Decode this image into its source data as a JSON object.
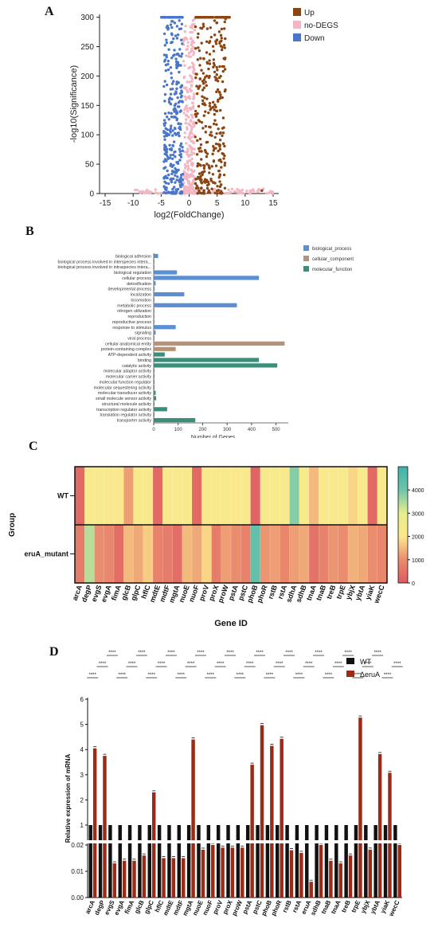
{
  "panel_labels": {
    "a": "A",
    "b": "B",
    "c": "C",
    "d": "D"
  },
  "chart_data": [
    {
      "type": "scatter",
      "panel": "A",
      "xlabel": "log2(FoldChange)",
      "ylabel": "-log10(Significance)",
      "xlim": [
        -16,
        16
      ],
      "ylim": [
        0,
        305
      ],
      "x_ticks": [
        -15,
        -10,
        -5,
        0,
        5,
        10,
        15
      ],
      "y_ticks": [
        0,
        50,
        100,
        150,
        200,
        250,
        300
      ],
      "legend_position": "right",
      "series": [
        {
          "name": "Up",
          "color": "#8b4513"
        },
        {
          "name": "no-DEGS",
          "color": "#f4b6c2"
        },
        {
          "name": "Down",
          "color": "#4a76c9"
        }
      ]
    },
    {
      "type": "bar",
      "orientation": "horizontal",
      "panel": "B",
      "xlabel": "Number of Genes",
      "xlim": [
        0,
        550
      ],
      "x_ticks": [
        0,
        100,
        200,
        300,
        400,
        500
      ],
      "legend_position": "top-right",
      "groups": [
        {
          "name": "biological_process",
          "color": "#5b8fd1"
        },
        {
          "name": "cellular_component",
          "color": "#b89276"
        },
        {
          "name": "molecular_function",
          "color": "#3b8f7a"
        }
      ],
      "categories": [
        "biological adhesion",
        "biological process involved in interspecies intera...",
        "biological process involved in intraspecies intera...",
        "biological regulation",
        "cellular process",
        "detoxification",
        "developmental process",
        "localization",
        "locomotion",
        "metabolic process",
        "nitrogen utilization",
        "reproduction",
        "reproductive process",
        "response to stimulus",
        "signaling",
        "viral process",
        "cellular anatomical entity",
        "protein-containing complex",
        "ATP-dependent activity",
        "binding",
        "catalytic activity",
        "molecular adaptor activity",
        "molecular carrier activity",
        "molecular function regulator",
        "molecular sequestering activity",
        "molecular transducer activity",
        "small molecule sensor activity",
        "structural molecule activity",
        "transcription regulator activity",
        "translation regulator activity",
        "transporter activity"
      ],
      "category_group": [
        0,
        0,
        0,
        0,
        0,
        0,
        0,
        0,
        0,
        0,
        0,
        0,
        0,
        0,
        0,
        0,
        1,
        1,
        2,
        2,
        2,
        2,
        2,
        2,
        2,
        2,
        2,
        2,
        2,
        2,
        2
      ],
      "values": [
        18,
        3,
        3,
        95,
        430,
        8,
        4,
        125,
        2,
        340,
        2,
        2,
        3,
        90,
        8,
        2,
        535,
        90,
        45,
        430,
        505,
        2,
        2,
        2,
        2,
        8,
        10,
        2,
        55,
        2,
        170
      ]
    },
    {
      "type": "heatmap",
      "panel": "C",
      "xlabel": "Gene ID",
      "ylabel": "Group",
      "rows": [
        "WT",
        "eruA_mutant"
      ],
      "columns": [
        "arcA",
        "degP",
        "evgS",
        "evgA",
        "fimA",
        "glcB",
        "glpC",
        "hflC",
        "mdtE",
        "mdtF",
        "mgtA",
        "nuoE",
        "nuoF",
        "proV",
        "proX",
        "proW",
        "pstA",
        "pstC",
        "phoB",
        "phoR",
        "rstB",
        "rstA",
        "sdhA",
        "sdhB",
        "tnaA",
        "tnaB",
        "treB",
        "trpE",
        "ybjX",
        "ybtA",
        "yiaK",
        "wecC"
      ],
      "colorbar_ticks": [
        0,
        1000,
        2000,
        3000,
        4000
      ],
      "values": [
        [
          300,
          2200,
          2300,
          2200,
          2000,
          1200,
          2200,
          2300,
          300,
          2300,
          2200,
          2200,
          300,
          2200,
          2200,
          2200,
          2100,
          2200,
          200,
          2300,
          2300,
          2300,
          3800,
          2300,
          1500,
          2000,
          2200,
          2200,
          1800,
          2200,
          300,
          2100
        ],
        [
          700,
          3400,
          1000,
          900,
          400,
          1500,
          1300,
          1700,
          800,
          700,
          400,
          1500,
          1300,
          1800,
          700,
          1200,
          1000,
          800,
          4200,
          1100,
          1200,
          900,
          1200,
          1300,
          500,
          800,
          1100,
          1000,
          1400,
          1300,
          1000,
          900
        ]
      ]
    },
    {
      "type": "bar",
      "panel": "D",
      "ylabel": "Relative expression of mRNA",
      "y_ticks": [
        "0.00",
        "0.01",
        "0.02",
        "1",
        "2",
        "3",
        "4",
        "5",
        "6"
      ],
      "axis_break": true,
      "annotation": "****",
      "legend_position": "top-right",
      "categories": [
        "arcA",
        "degP",
        "evgS",
        "evgA",
        "fimA",
        "glcB",
        "glpC",
        "hflC",
        "mdtE",
        "mdtF",
        "mgtA",
        "nuoE",
        "nuoF",
        "proV",
        "proX",
        "proW",
        "pstA",
        "pstC",
        "phoB",
        "phoR",
        "rstB",
        "rstA",
        "eruA",
        "sdhB",
        "tnaB",
        "tnaA",
        "treB",
        "trpE",
        "ybjX",
        "ybtA",
        "yiaK",
        "wecC"
      ],
      "series": [
        {
          "name": "WT",
          "color": "#111111",
          "values": [
            1,
            1,
            1,
            1,
            1,
            1,
            1,
            1,
            1,
            1,
            1,
            1,
            1,
            1,
            1,
            1,
            1,
            1,
            1,
            1,
            1,
            1,
            1,
            1,
            1,
            1,
            1,
            1,
            1,
            1,
            1,
            1
          ]
        },
        {
          "name": "ΔeruA",
          "color": "#9b2a16",
          "values": [
            4.05,
            3.75,
            0.013,
            0.014,
            0.014,
            0.016,
            2.3,
            0.015,
            0.015,
            0.015,
            4.4,
            0.021,
            0.02,
            0.019,
            0.019,
            0.019,
            3.4,
            4.97,
            4.15,
            4.43,
            0.018,
            0.017,
            0.006,
            0.02,
            0.014,
            0.013,
            0.016,
            5.27,
            0.024,
            3.82,
            3.08,
            0.02
          ]
        }
      ]
    }
  ]
}
